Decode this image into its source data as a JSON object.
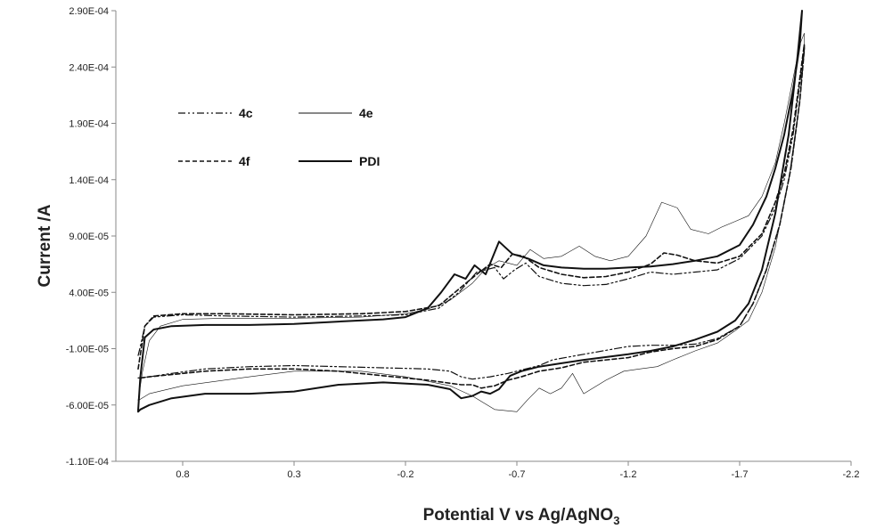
{
  "chart_data": {
    "type": "line",
    "title": "",
    "xlabel": "Potential V vs Ag/AgNO",
    "xlabel_subscript": "3",
    "ylabel": "Current /A",
    "xlim": [
      1.1,
      -2.2
    ],
    "ylim": [
      -0.00011,
      0.00029
    ],
    "x_ticks": [
      0.8,
      0.3,
      -0.2,
      -0.7,
      -1.2,
      -1.7,
      -2.2
    ],
    "x_tick_labels": [
      "0.8",
      "0.3",
      "-0.2",
      "-0.7",
      "-1.2",
      "-1.7",
      "-2.2"
    ],
    "y_ticks": [
      0.00029,
      0.00024,
      0.00019,
      0.00014,
      9e-05,
      4e-05,
      -1e-05,
      -6e-05,
      -0.00011
    ],
    "y_tick_labels": [
      "2.90E-04",
      "2.40E-04",
      "1.90E-04",
      "1.40E-04",
      "9.00E-05",
      "4.00E-05",
      "-1.00E-05",
      "-6.00E-05",
      "-1.10E-04"
    ],
    "grid": false,
    "legend_position": "top-left",
    "series": [
      {
        "name": "4c",
        "line_style": "dash-dot-dot",
        "line_width": 1.2,
        "color": "#111111",
        "x": [
          1.0,
          0.99,
          0.97,
          0.93,
          0.8,
          0.6,
          0.3,
          0.0,
          -0.2,
          -0.35,
          -0.44,
          -0.52,
          -0.6,
          -0.64,
          -0.69,
          -0.74,
          -0.8,
          -0.9,
          -1.0,
          -1.1,
          -1.2,
          -1.3,
          -1.4,
          -1.5,
          -1.6,
          -1.7,
          -1.8,
          -1.86,
          -1.9,
          -1.94,
          -1.97,
          -1.99,
          -1.99,
          -1.97,
          -1.93,
          -1.88,
          -1.82,
          -1.76,
          -1.7,
          -1.6,
          -1.5,
          -1.4,
          -1.3,
          -1.2,
          -1.0,
          -0.86,
          -0.8,
          -0.72,
          -0.66,
          -0.58,
          -0.5,
          -0.45,
          -0.4,
          -0.3,
          -0.1,
          0.1,
          0.3,
          0.5,
          0.7,
          0.85,
          0.95,
          0.99,
          1.0
        ],
        "y": [
          -1.6e-05,
          -8e-06,
          1e-05,
          1.8e-05,
          2e-05,
          1.9e-05,
          1.8e-05,
          1.9e-05,
          2e-05,
          2.6e-05,
          4e-05,
          5.8e-05,
          6.2e-05,
          5.2e-05,
          6e-05,
          6.6e-05,
          5.4e-05,
          4.8e-05,
          4.6e-05,
          4.7e-05,
          5.2e-05,
          5.8e-05,
          5.6e-05,
          5.8e-05,
          6e-05,
          7e-05,
          9e-05,
          0.000115,
          0.00014,
          0.00018,
          0.000225,
          0.00026,
          0.000255,
          0.00021,
          0.00015,
          0.0001,
          6e-05,
          3e-05,
          1e-05,
          -1e-06,
          -6e-06,
          -7e-06,
          -7e-06,
          -8e-06,
          -1.5e-05,
          -2e-05,
          -2.5e-05,
          -2.9e-05,
          -3.2e-05,
          -3.5e-05,
          -3.7e-05,
          -3.5e-05,
          -3e-05,
          -2.8e-05,
          -2.7e-05,
          -2.6e-05,
          -2.5e-05,
          -2.6e-05,
          -2.8e-05,
          -3.2e-05,
          -3.5e-05,
          -3.6e-05,
          -3.6e-05
        ]
      },
      {
        "name": "4e",
        "line_style": "solid",
        "line_width": 0.6,
        "color": "#111111",
        "x": [
          1.0,
          0.98,
          0.95,
          0.9,
          0.8,
          0.6,
          0.3,
          0.0,
          -0.2,
          -0.3,
          -0.4,
          -0.5,
          -0.56,
          -0.62,
          -0.7,
          -0.76,
          -0.82,
          -0.9,
          -0.98,
          -1.05,
          -1.12,
          -1.2,
          -1.28,
          -1.35,
          -1.42,
          -1.48,
          -1.56,
          -1.62,
          -1.68,
          -1.74,
          -1.8,
          -1.86,
          -1.9,
          -1.94,
          -1.97,
          -1.99,
          -1.99,
          -1.97,
          -1.92,
          -1.86,
          -1.8,
          -1.74,
          -1.68,
          -1.6,
          -1.5,
          -1.4,
          -1.33,
          -1.25,
          -1.18,
          -1.1,
          -1.0,
          -0.95,
          -0.9,
          -0.85,
          -0.8,
          -0.75,
          -0.7,
          -0.6,
          -0.5,
          -0.4,
          -0.2,
          0.0,
          0.3,
          0.5,
          0.8,
          0.95,
          1.0
        ],
        "y": [
          -5.6e-05,
          -3e-05,
          -3e-06,
          1e-05,
          1.6e-05,
          1.7e-05,
          1.7e-05,
          1.8e-05,
          2.1e-05,
          2.5e-05,
          3.3e-05,
          4.8e-05,
          6.1e-05,
          6.8e-05,
          6.4e-05,
          7.8e-05,
          7e-05,
          7.2e-05,
          8.1e-05,
          7.2e-05,
          6.8e-05,
          7.2e-05,
          9e-05,
          0.00012,
          0.000115,
          9.6e-05,
          9.2e-05,
          9.8e-05,
          0.000103,
          0.000108,
          0.000125,
          0.000155,
          0.00019,
          0.00023,
          0.00026,
          0.00027,
          0.00026,
          0.00021,
          0.00014,
          8e-05,
          4e-05,
          1.5e-05,
          6e-06,
          -5e-06,
          -1.2e-05,
          -2e-05,
          -2.6e-05,
          -2.8e-05,
          -3e-05,
          -3.8e-05,
          -5e-05,
          -3.2e-05,
          -4.5e-05,
          -5e-05,
          -4.5e-05,
          -5.5e-05,
          -6.6e-05,
          -6.4e-05,
          -5.2e-05,
          -4.3e-05,
          -3.5e-05,
          -3e-05,
          -3e-05,
          -3.5e-05,
          -4.3e-05,
          -5e-05,
          -5.6e-05
        ]
      },
      {
        "name": "4f",
        "line_style": "dashed",
        "line_width": 1.6,
        "color": "#111111",
        "x": [
          1.0,
          0.99,
          0.97,
          0.93,
          0.8,
          0.6,
          0.3,
          0.0,
          -0.2,
          -0.35,
          -0.44,
          -0.52,
          -0.58,
          -0.63,
          -0.68,
          -0.73,
          -0.8,
          -0.9,
          -1.0,
          -1.1,
          -1.2,
          -1.3,
          -1.36,
          -1.42,
          -1.5,
          -1.6,
          -1.7,
          -1.8,
          -1.86,
          -1.9,
          -1.94,
          -1.97,
          -1.99,
          -1.99,
          -1.97,
          -1.93,
          -1.88,
          -1.82,
          -1.76,
          -1.7,
          -1.6,
          -1.5,
          -1.4,
          -1.3,
          -1.2,
          -1.0,
          -0.9,
          -0.8,
          -0.72,
          -0.66,
          -0.6,
          -0.54,
          -0.5,
          -0.45,
          -0.3,
          -0.1,
          0.1,
          0.3,
          0.5,
          0.7,
          0.85,
          0.95,
          0.99,
          1.0
        ],
        "y": [
          -2.8e-05,
          -1.5e-05,
          1e-05,
          1.9e-05,
          2.1e-05,
          2.1e-05,
          2e-05,
          2.1e-05,
          2.3e-05,
          2.8e-05,
          4.3e-05,
          5.6e-05,
          6.5e-05,
          6.2e-05,
          7.4e-05,
          7.2e-05,
          6.2e-05,
          5.6e-05,
          5.3e-05,
          5.4e-05,
          5.8e-05,
          6.5e-05,
          7.5e-05,
          7.3e-05,
          6.8e-05,
          6.6e-05,
          7.2e-05,
          9.2e-05,
          0.00012,
          0.000145,
          0.000185,
          0.00023,
          0.00026,
          0.000255,
          0.00021,
          0.00015,
          0.0001,
          6e-05,
          3e-05,
          1e-05,
          -2e-06,
          -8e-06,
          -1e-05,
          -1.3e-05,
          -1.8e-05,
          -2.2e-05,
          -2.7e-05,
          -3e-05,
          -3.5e-05,
          -3.8e-05,
          -4.3e-05,
          -4.5e-05,
          -4.2e-05,
          -4.2e-05,
          -3.8e-05,
          -3.4e-05,
          -3e-05,
          -2.8e-05,
          -2.8e-05,
          -3e-05,
          -3.3e-05,
          -3.5e-05,
          -3.6e-05,
          -3.6e-05
        ]
      },
      {
        "name": "PDI",
        "line_style": "solid",
        "line_width": 2.0,
        "color": "#111111",
        "x": [
          1.0,
          0.99,
          0.97,
          0.93,
          0.85,
          0.7,
          0.5,
          0.3,
          0.1,
          -0.1,
          -0.2,
          -0.3,
          -0.36,
          -0.42,
          -0.47,
          -0.51,
          -0.56,
          -0.62,
          -0.68,
          -0.75,
          -0.82,
          -0.9,
          -1.0,
          -1.1,
          -1.2,
          -1.3,
          -1.4,
          -1.5,
          -1.6,
          -1.7,
          -1.76,
          -1.82,
          -1.86,
          -1.9,
          -1.94,
          -1.97,
          -1.98,
          -1.96,
          -1.92,
          -1.86,
          -1.8,
          -1.74,
          -1.68,
          -1.6,
          -1.5,
          -1.4,
          -1.3,
          -1.2,
          -1.0,
          -0.9,
          -0.8,
          -0.72,
          -0.67,
          -0.62,
          -0.58,
          -0.54,
          -0.5,
          -0.45,
          -0.4,
          -0.3,
          -0.1,
          0.1,
          0.3,
          0.5,
          0.7,
          0.85,
          0.95,
          0.99,
          1.0
        ],
        "y": [
          -6.5e-05,
          -3.5e-05,
          0.0,
          7e-06,
          1e-05,
          1.1e-05,
          1.1e-05,
          1.2e-05,
          1.4e-05,
          1.6e-05,
          1.8e-05,
          2.6e-05,
          4e-05,
          5.6e-05,
          5.2e-05,
          6.4e-05,
          5.6e-05,
          8.5e-05,
          7.4e-05,
          7e-05,
          6.4e-05,
          6.2e-05,
          6.1e-05,
          6.1e-05,
          6.2e-05,
          6.3e-05,
          6.5e-05,
          6.8e-05,
          7.2e-05,
          8.2e-05,
          0.0001,
          0.000125,
          0.00015,
          0.00018,
          0.00022,
          0.00026,
          0.00029,
          0.00025,
          0.00018,
          0.00011,
          6e-05,
          3e-05,
          1.5e-05,
          5e-06,
          -2e-06,
          -8e-06,
          -1.2e-05,
          -1.5e-05,
          -2e-05,
          -2.3e-05,
          -2.6e-05,
          -3e-05,
          -3.4e-05,
          -4.6e-05,
          -5e-05,
          -4.8e-05,
          -5.2e-05,
          -5.4e-05,
          -4.6e-05,
          -4.2e-05,
          -4e-05,
          -4.2e-05,
          -4.8e-05,
          -5e-05,
          -5e-05,
          -5.4e-05,
          -6e-05,
          -6.4e-05,
          -6.6e-05
        ]
      }
    ],
    "legend": {
      "entries": [
        "4c",
        "4e",
        "4f",
        "PDI"
      ]
    }
  }
}
